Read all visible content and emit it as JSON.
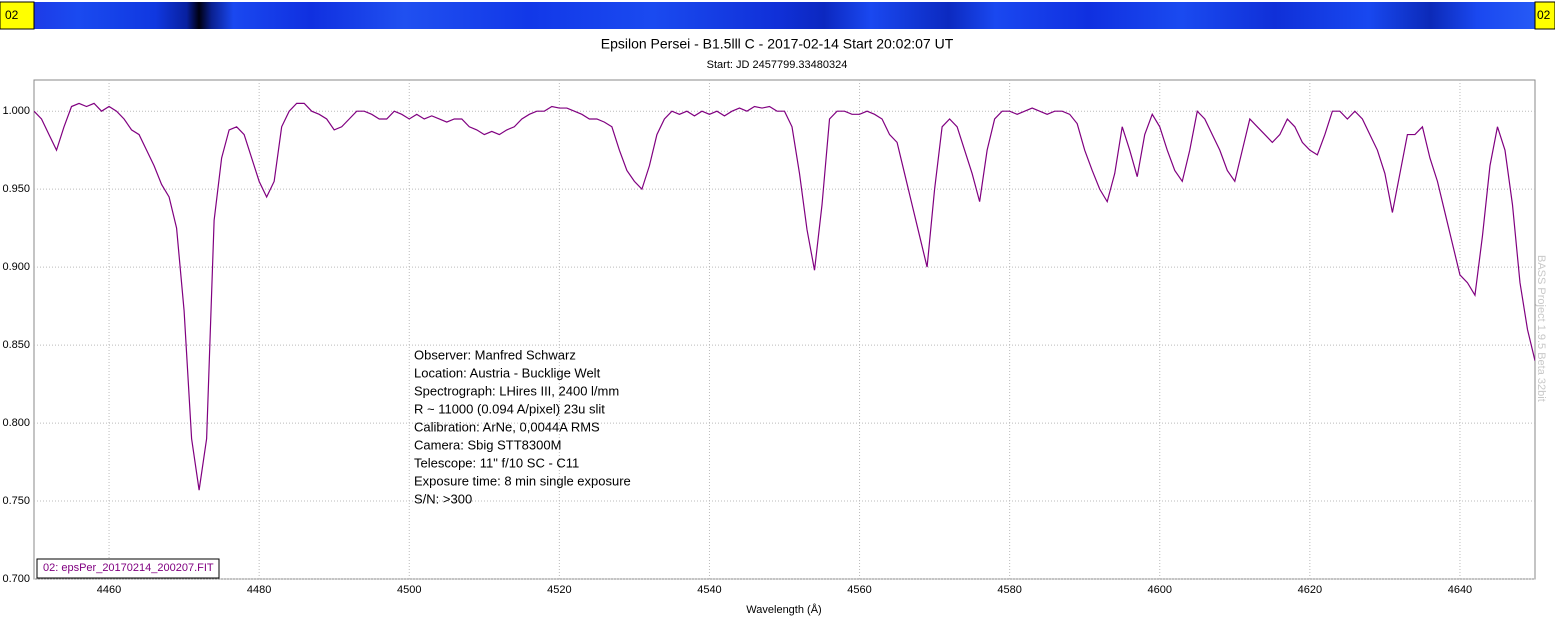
{
  "chart_data": {
    "type": "line",
    "title": "Epsilon Persei - B1.5lll C - 2017-02-14 Start 20:02:07 UT",
    "subtitle": "Start: JD 2457799.33480324",
    "x_label": "Wavelength (Å)",
    "strip_labels": [
      "02",
      "02"
    ],
    "watermark": "BASS Project 1.9.5 Beta 32bit",
    "annotations": [
      "Observer: Manfred Schwarz",
      "Location: Austria - Bucklige Welt",
      "Spectrograph: LHires III, 2400 l/mm",
      "R ~ 11000 (0.094 A/pixel) 23u slit",
      "Calibration: ArNe, 0,0044A RMS",
      "Camera: Sbig STT8300M",
      "Telescope: 11\" f/10 SC - C11",
      "Exposure time: 8 min single exposure",
      "S/N:  >300"
    ],
    "xlim": [
      4450,
      4650
    ],
    "ylim": [
      0.7,
      1.02
    ],
    "xticks": [
      4460,
      4480,
      4500,
      4520,
      4540,
      4560,
      4580,
      4600,
      4620,
      4640
    ],
    "yticks": [
      {
        "value": 0.7,
        "label": "0.700"
      },
      {
        "value": 0.75,
        "label": "0.750"
      },
      {
        "value": 0.8,
        "label": "0.800"
      },
      {
        "value": 0.85,
        "label": "0.850"
      },
      {
        "value": 0.9,
        "label": "0.900"
      },
      {
        "value": 0.95,
        "label": "0.950"
      },
      {
        "value": 1.0,
        "label": "1.000"
      }
    ],
    "grid": true,
    "legend": "bottom-left",
    "x": [
      4450,
      4451,
      4452,
      4453,
      4454,
      4455,
      4456,
      4457,
      4458,
      4459,
      4460,
      4461,
      4462,
      4463,
      4464,
      4465,
      4466,
      4467,
      4468,
      4469,
      4470,
      4471,
      4472,
      4473,
      4474,
      4475,
      4476,
      4477,
      4478,
      4479,
      4480,
      4481,
      4482,
      4483,
      4484,
      4485,
      4486,
      4487,
      4488,
      4489,
      4490,
      4491,
      4492,
      4493,
      4494,
      4495,
      4496,
      4497,
      4498,
      4499,
      4500,
      4501,
      4502,
      4503,
      4504,
      4505,
      4506,
      4507,
      4508,
      4509,
      4510,
      4511,
      4512,
      4513,
      4514,
      4515,
      4516,
      4517,
      4518,
      4519,
      4520,
      4521,
      4522,
      4523,
      4524,
      4525,
      4526,
      4527,
      4528,
      4529,
      4530,
      4531,
      4532,
      4533,
      4534,
      4535,
      4536,
      4537,
      4538,
      4539,
      4540,
      4541,
      4542,
      4543,
      4544,
      4545,
      4546,
      4547,
      4548,
      4549,
      4550,
      4551,
      4552,
      4553,
      4554,
      4555,
      4556,
      4557,
      4558,
      4559,
      4560,
      4561,
      4562,
      4563,
      4564,
      4565,
      4566,
      4567,
      4568,
      4569,
      4570,
      4571,
      4572,
      4573,
      4574,
      4575,
      4576,
      4577,
      4578,
      4579,
      4580,
      4581,
      4582,
      4583,
      4584,
      4585,
      4586,
      4587,
      4588,
      4589,
      4590,
      4591,
      4592,
      4593,
      4594,
      4595,
      4596,
      4597,
      4598,
      4599,
      4600,
      4601,
      4602,
      4603,
      4604,
      4605,
      4606,
      4607,
      4608,
      4609,
      4610,
      4611,
      4612,
      4613,
      4614,
      4615,
      4616,
      4617,
      4618,
      4619,
      4620,
      4621,
      4622,
      4623,
      4624,
      4625,
      4626,
      4627,
      4628,
      4629,
      4630,
      4631,
      4632,
      4633,
      4634,
      4635,
      4636,
      4637,
      4638,
      4639,
      4640,
      4641,
      4642,
      4643,
      4644,
      4645,
      4646,
      4647,
      4648,
      4649,
      4650
    ],
    "series": [
      {
        "name": "02: epsPer_20170214_200207.FIT",
        "color": "#800080",
        "values": [
          1.0,
          0.995,
          0.985,
          0.975,
          0.99,
          1.003,
          1.005,
          1.003,
          1.005,
          1.0,
          1.003,
          1.0,
          0.995,
          0.988,
          0.985,
          0.975,
          0.965,
          0.953,
          0.945,
          0.925,
          0.872,
          0.79,
          0.757,
          0.79,
          0.93,
          0.97,
          0.988,
          0.99,
          0.985,
          0.97,
          0.955,
          0.945,
          0.955,
          0.99,
          1.0,
          1.005,
          1.005,
          1.0,
          0.998,
          0.995,
          0.988,
          0.99,
          0.995,
          1.0,
          1.0,
          0.998,
          0.995,
          0.995,
          1.0,
          0.998,
          0.995,
          0.998,
          0.995,
          0.997,
          0.995,
          0.993,
          0.995,
          0.995,
          0.99,
          0.988,
          0.985,
          0.987,
          0.985,
          0.988,
          0.99,
          0.995,
          0.998,
          1.0,
          1.0,
          1.003,
          1.002,
          1.002,
          1.0,
          0.998,
          0.995,
          0.995,
          0.993,
          0.99,
          0.975,
          0.962,
          0.955,
          0.95,
          0.965,
          0.985,
          0.995,
          1.0,
          0.998,
          1.0,
          0.997,
          1.0,
          0.998,
          1.0,
          0.997,
          1.0,
          1.002,
          1.0,
          1.003,
          1.002,
          1.003,
          1.0,
          1.0,
          0.99,
          0.96,
          0.924,
          0.898,
          0.94,
          0.995,
          1.0,
          1.0,
          0.998,
          0.998,
          1.0,
          0.998,
          0.995,
          0.985,
          0.98,
          0.96,
          0.94,
          0.92,
          0.9,
          0.95,
          0.99,
          0.995,
          0.99,
          0.975,
          0.96,
          0.942,
          0.975,
          0.995,
          1.0,
          1.0,
          0.998,
          1.0,
          1.002,
          1.0,
          0.998,
          1.0,
          1.0,
          0.998,
          0.992,
          0.975,
          0.962,
          0.95,
          0.942,
          0.96,
          0.99,
          0.975,
          0.958,
          0.985,
          0.998,
          0.99,
          0.975,
          0.962,
          0.955,
          0.975,
          1.0,
          0.995,
          0.985,
          0.975,
          0.962,
          0.955,
          0.975,
          0.995,
          0.99,
          0.985,
          0.98,
          0.985,
          0.995,
          0.99,
          0.98,
          0.975,
          0.972,
          0.985,
          1.0,
          1.0,
          0.995,
          1.0,
          0.995,
          0.985,
          0.975,
          0.96,
          0.935,
          0.96,
          0.985,
          0.985,
          0.99,
          0.97,
          0.955,
          0.935,
          0.915,
          0.895,
          0.89,
          0.882,
          0.92,
          0.965,
          0.99,
          0.975,
          0.94,
          0.89,
          0.86,
          0.84
        ]
      }
    ]
  }
}
